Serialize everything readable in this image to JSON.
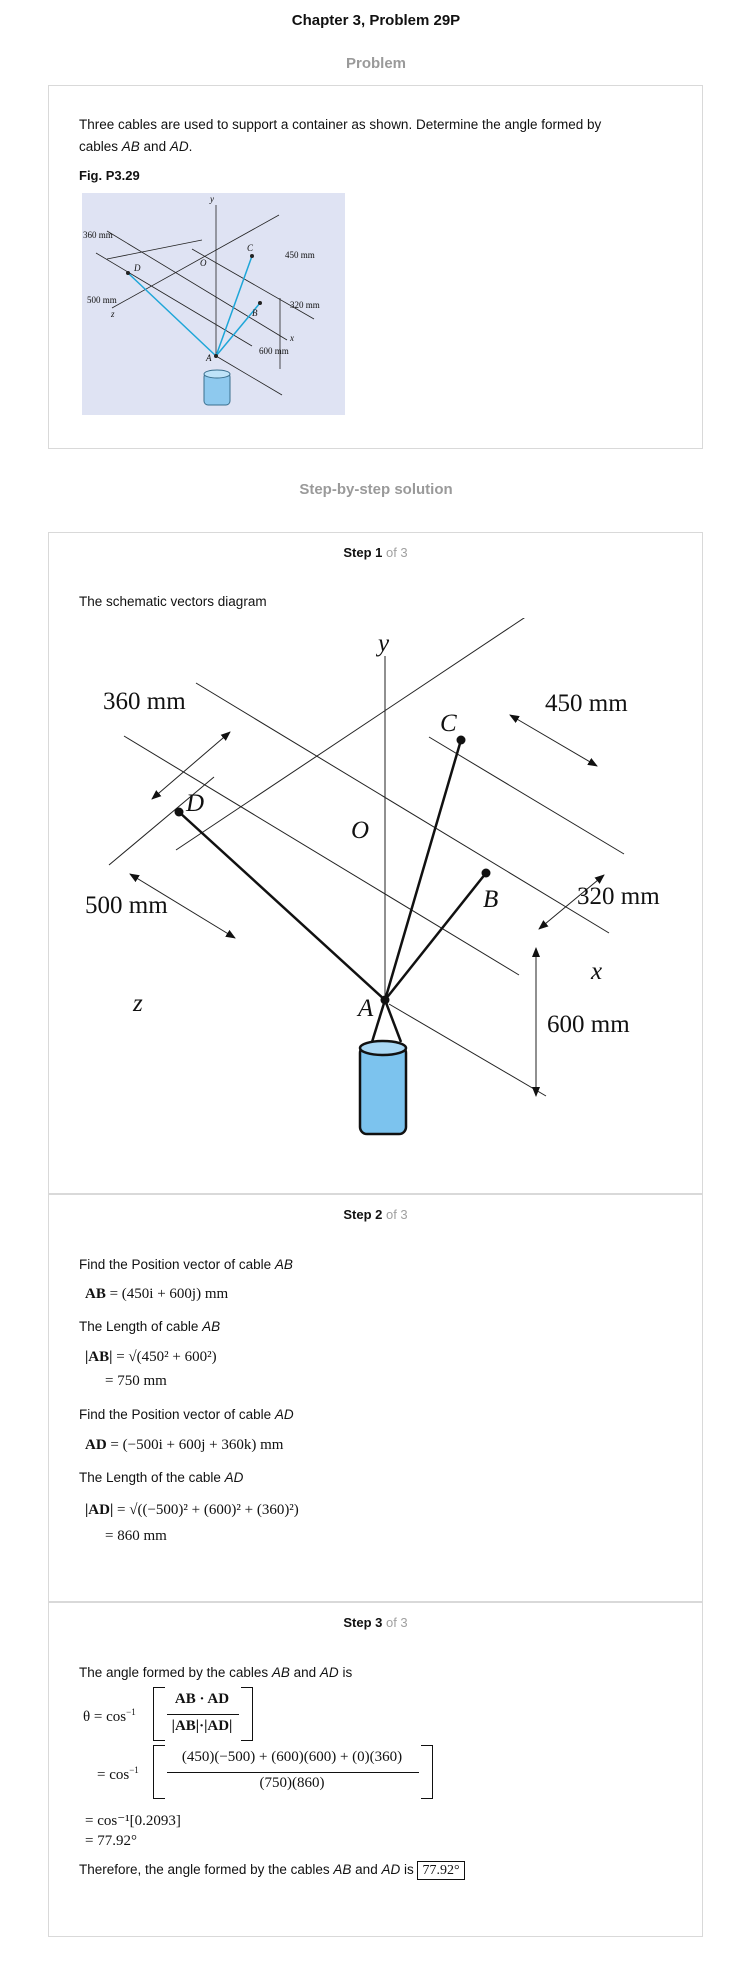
{
  "page_title": "Chapter 3, Problem 29P",
  "problem": {
    "heading": "Problem",
    "text_1": "Three cables are used to support a container as shown. Determine the angle formed by",
    "text_2_prefix": "cables ",
    "ab": "AB",
    "and": " and ",
    "ad": "AD",
    "period": ".",
    "figure_label": "Fig. P3.29",
    "figure_labels": {
      "y": "y",
      "x": "x",
      "z": "z",
      "o": "O",
      "a": "A",
      "b": "B",
      "c": "C",
      "d": "D",
      "d360": "360 mm",
      "d450": "450 mm",
      "d500": "500 mm",
      "d320": "320 mm",
      "d600": "600 mm"
    }
  },
  "solution_heading": "Step-by-step solution",
  "steps": [
    {
      "label": "Step 1",
      "of": " of 3",
      "intro": "The schematic vectors diagram",
      "diagram_labels": {
        "y": "y",
        "x": "x",
        "z": "z",
        "o": "O",
        "a": "A",
        "b": "B",
        "c": "C",
        "d": "D",
        "d360": "360 mm",
        "d450": "450 mm",
        "d500": "500 mm",
        "d320": "320 mm",
        "d600": "600 mm"
      }
    },
    {
      "label": "Step 2",
      "of": " of 3",
      "l1_pre": "Find the Position vector of cable ",
      "l1_var": "AB",
      "eq1_lhs": "AB",
      "eq1_rhs": " = (450i + 600j) mm",
      "l2_pre": "The Length of cable ",
      "l2_var": "AB",
      "eq2_lhs": "|AB|",
      "eq2_rhs": " = √(450² + 600²)",
      "eq2_res": "= 750 mm",
      "l3_pre": "Find the Position vector of cable ",
      "l3_var": "AD",
      "eq3_lhs": "AD",
      "eq3_rhs": " = (−500i + 600j + 360k) mm",
      "l4_pre": "The Length of the cable ",
      "l4_var": "AD",
      "eq4_lhs": "|AD|",
      "eq4_rhs": " = √((−500)² + (600)² + (360)²)",
      "eq4_res": "= 860 mm"
    },
    {
      "label": "Step 3",
      "of": " of 3",
      "l1_pre": "The angle formed by the cables ",
      "l1_ab": "AB",
      "l1_and": " and ",
      "l1_ad": "AD",
      "l1_post": " is",
      "theta": "θ = cos",
      "inv": "−1",
      "num1": "AB · AD",
      "den1": "|AB|·|AD|",
      "eq2_pre": "= cos",
      "num2": "(450)(−500) + (600)(600) + (0)(360)",
      "den2": "(750)(860)",
      "eq3": "= cos⁻¹[0.2093]",
      "eq4": "= 77.92°",
      "final_pre": "Therefore, the angle formed by the cables ",
      "final_ab": "AB",
      "final_and": " and ",
      "final_ad": "AD",
      "final_is": " is ",
      "answer": "77.92°"
    }
  ]
}
